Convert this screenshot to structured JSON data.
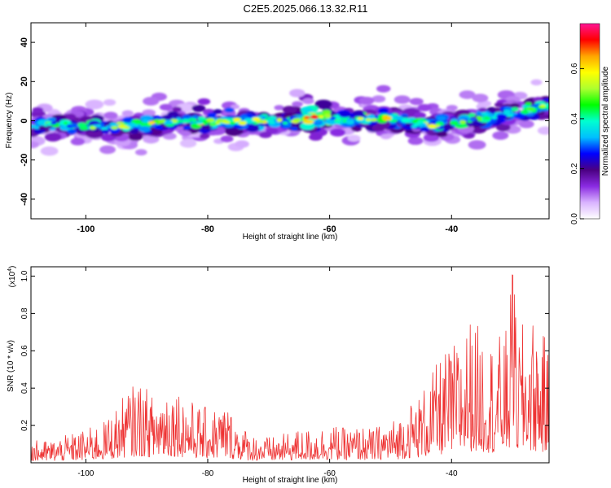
{
  "title": "C2E5.2025.066.13.32.R11",
  "chart_data": [
    {
      "type": "heatmap",
      "xlabel": "Height of straight line (km)",
      "ylabel": "Frequency (Hz)",
      "xlim": [
        -109,
        -24
      ],
      "ylim": [
        -50,
        50
      ],
      "xticks": [
        -100,
        -80,
        -60,
        -40
      ],
      "yticks": [
        -40,
        -20,
        0,
        20,
        40
      ],
      "colorbar": {
        "label": "Normalized spectral amplitude",
        "range": [
          0.0,
          0.78
        ],
        "ticks": [
          0.0,
          0.2,
          0.4,
          0.6
        ],
        "tick_labels": [
          "0.0",
          "0.2",
          "0.4",
          "0.6"
        ],
        "colors": [
          "#ffffff",
          "#d9b3ff",
          "#8a2be2",
          "#4b0082",
          "#0000ff",
          "#00bfff",
          "#00ffd0",
          "#00ff00",
          "#adff2f",
          "#ffff00",
          "#ffa500",
          "#ff0000",
          "#ff1493"
        ]
      },
      "ridge": {
        "x": [
          -108,
          -104,
          -100,
          -96,
          -92,
          -88,
          -84,
          -80,
          -76,
          -72,
          -68,
          -64,
          -60,
          -56,
          -52,
          -48,
          -44,
          -40,
          -36,
          -32,
          -28,
          -25
        ],
        "y": [
          -2,
          -2,
          -3,
          -3,
          -2,
          -1,
          0,
          -1,
          0,
          0,
          0,
          1,
          2,
          1,
          2,
          0,
          -2,
          -2,
          1,
          3,
          5,
          7
        ],
        "peak": [
          0.45,
          0.5,
          0.55,
          0.5,
          0.55,
          0.6,
          0.5,
          0.7,
          0.55,
          0.6,
          0.55,
          0.75,
          0.65,
          0.55,
          0.65,
          0.5,
          0.6,
          0.5,
          0.55,
          0.5,
          0.55,
          0.55
        ]
      }
    },
    {
      "type": "line",
      "xlabel": "Height of straight line (km)",
      "ylabel": "SNR (10 * v/v)",
      "yscale_label": "(x10",
      "yscale_exp": "4",
      "xlim": [
        -109,
        -24
      ],
      "ylim": [
        0,
        1.05
      ],
      "xticks": [
        -100,
        -80,
        -60,
        -40
      ],
      "yticks": [
        0.2,
        0.4,
        0.6,
        0.8,
        1.0
      ],
      "ytick_labels": [
        "0.2",
        "0.4",
        "0.6",
        "0.8",
        "1.0"
      ],
      "line_color": "#ee3333",
      "series": [
        {
          "x": [
            -109,
            -106,
            -103,
            -100,
            -97,
            -95,
            -93,
            -91,
            -89,
            -87,
            -85,
            -83,
            -81,
            -79,
            -77,
            -75,
            -73,
            -71,
            -69,
            -67,
            -65,
            -63,
            -61,
            -59,
            -57,
            -55,
            -53,
            -51,
            -49,
            -47,
            -45,
            -43,
            -41,
            -39,
            -37,
            -35,
            -33,
            -31,
            -30,
            -29,
            -27,
            -25,
            -24
          ],
          "envelope": [
            0.12,
            0.12,
            0.15,
            0.18,
            0.22,
            0.3,
            0.4,
            0.44,
            0.36,
            0.44,
            0.42,
            0.34,
            0.3,
            0.3,
            0.32,
            0.22,
            0.16,
            0.14,
            0.14,
            0.16,
            0.18,
            0.18,
            0.2,
            0.2,
            0.18,
            0.2,
            0.18,
            0.22,
            0.24,
            0.32,
            0.38,
            0.5,
            0.6,
            0.66,
            0.78,
            0.72,
            0.66,
            0.72,
            1.02,
            0.72,
            0.8,
            0.7,
            0.6
          ]
        }
      ]
    }
  ]
}
